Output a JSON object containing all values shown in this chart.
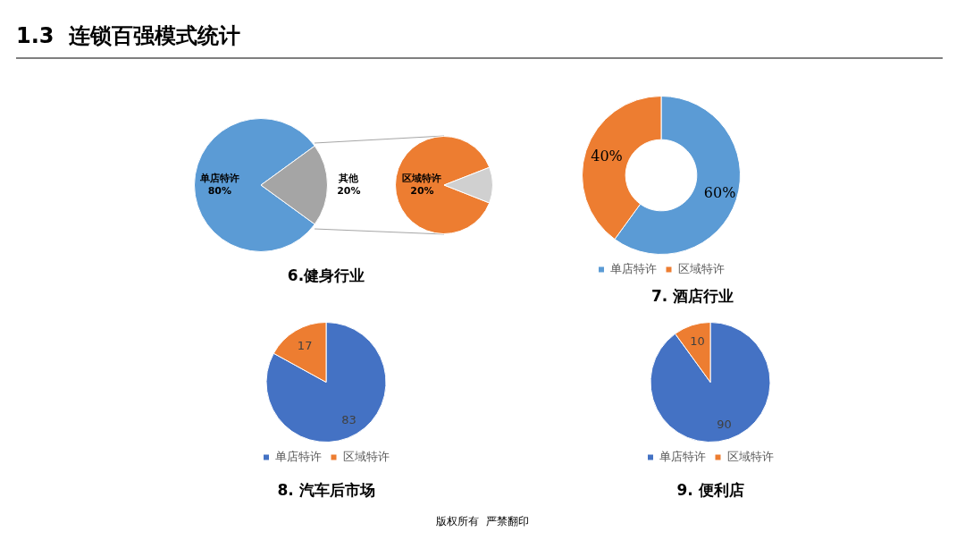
{
  "chart_data": [
    {
      "type": "other",
      "title": "1.3  连锁百强模式统计",
      "annotations": [
        "版权所有  严禁翻印"
      ]
    },
    {
      "type": "pie",
      "title": "6.健身行业",
      "categories": [
        "单店特许",
        "其他"
      ],
      "values": [
        80,
        20
      ],
      "value_labels": [
        "80%",
        "20%"
      ],
      "colors": [
        "#5b9bd5",
        "#a5a5a5"
      ],
      "legend": false
    },
    {
      "type": "pie",
      "categories": [
        "区域特许",
        null
      ],
      "values": [
        20,
        2.7
      ],
      "value_labels": [
        "20%",
        null
      ],
      "colors": [
        "#ed7d31",
        "#d0d0d0"
      ],
      "legend": false
    },
    {
      "type": "donut",
      "title": "7. 酒店行业",
      "categories": [
        "单店特许",
        "区域特许"
      ],
      "values": [
        60,
        40
      ],
      "value_labels": [
        "60%",
        "40%"
      ],
      "colors": [
        "#5b9bd5",
        "#ed7d31"
      ],
      "legend": "bottom"
    },
    {
      "type": "pie",
      "title": "8. 汽车后市场",
      "categories": [
        "单店特许",
        "区域特许"
      ],
      "values": [
        83,
        17
      ],
      "data_labels": true,
      "colors": [
        "#4472c4",
        "#ed7d31"
      ],
      "legend": "bottom"
    },
    {
      "type": "pie",
      "title": "9. 便利店",
      "categories": [
        "单店特许",
        "区域特许"
      ],
      "values": [
        90,
        10
      ],
      "data_labels": true,
      "colors": [
        "#4472c4",
        "#ed7d31"
      ],
      "legend": "bottom"
    }
  ]
}
